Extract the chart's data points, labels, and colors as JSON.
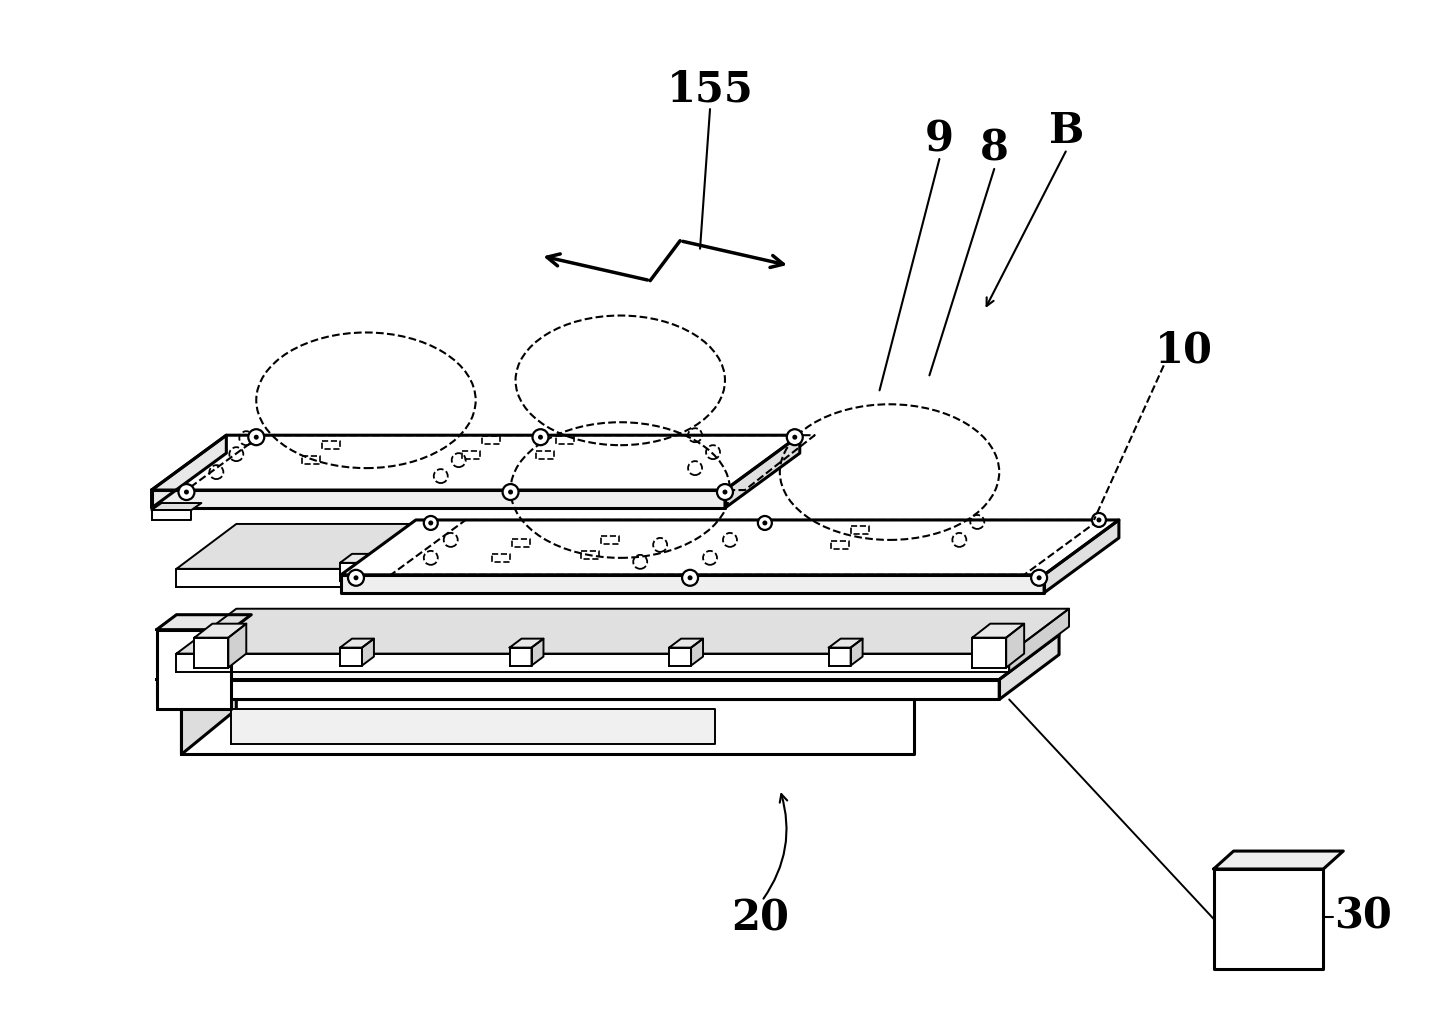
{
  "bg_color": "#ffffff",
  "lc": "#000000",
  "lw_main": 2.2,
  "lw_thin": 1.4,
  "lw_dashed": 1.5,
  "label_155": "155",
  "label_9": "9",
  "label_8": "8",
  "label_B": "B",
  "label_10": "10",
  "label_20": "20",
  "label_30": "30",
  "figsize": [
    14.31,
    10.16
  ],
  "dpi": 100
}
